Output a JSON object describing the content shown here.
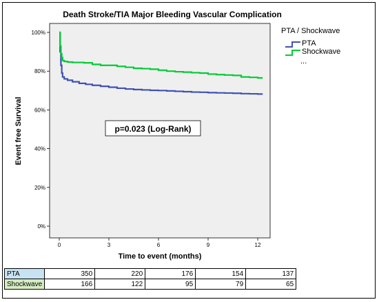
{
  "chart_data": {
    "type": "line",
    "subtype": "kaplan-meier",
    "title": "Death Stroke/TIA Major Bleeding Vascular Complication",
    "xlabel": "Time to event (months)",
    "ylabel": "Event free Survival",
    "xlim": [
      0,
      12.5
    ],
    "ylim": [
      0,
      100
    ],
    "x_ticks": [
      0,
      3,
      6,
      9,
      12
    ],
    "y_ticks": [
      "0%",
      "20%",
      "40%",
      "60%",
      "80%",
      "100%"
    ],
    "grid": false,
    "legend": {
      "title": "PTA / Shockwave",
      "placement": "right",
      "extra": "..."
    },
    "annotation": "p=0.023 (Log-Rank)",
    "series": [
      {
        "name": "PTA",
        "color": "#3f51b5",
        "x": [
          0,
          0.05,
          0.1,
          0.15,
          0.2,
          0.3,
          0.5,
          0.8,
          1.2,
          1.6,
          2.0,
          2.5,
          3.0,
          3.5,
          4.0,
          4.5,
          5.0,
          5.5,
          6.0,
          6.5,
          7.0,
          7.5,
          8.0,
          8.5,
          9.0,
          9.5,
          10.0,
          10.5,
          11.0,
          11.5,
          12.0,
          12.3
        ],
        "y": [
          100,
          90,
          83,
          79,
          77,
          76,
          75.3,
          74.5,
          73.7,
          73.2,
          72.7,
          72.2,
          71.7,
          71.2,
          70.8,
          70.5,
          70.3,
          70.1,
          70.0,
          69.8,
          69.6,
          69.4,
          69.2,
          69.1,
          68.9,
          68.8,
          68.7,
          68.6,
          68.4,
          68.3,
          68.2,
          68.2
        ]
      },
      {
        "name": "Shockwave",
        "color": "#00cc33",
        "x": [
          0,
          0.05,
          0.1,
          0.15,
          0.2,
          0.3,
          0.5,
          0.8,
          1.5,
          2.0,
          2.5,
          3.0,
          3.5,
          4.0,
          4.5,
          5.0,
          5.5,
          6.0,
          6.5,
          7.0,
          7.5,
          8.0,
          8.5,
          9.0,
          9.5,
          10.0,
          10.5,
          11.0,
          11.5,
          12.0,
          12.3
        ],
        "y": [
          100,
          93,
          89,
          87,
          85.5,
          85,
          84.7,
          84.5,
          84.3,
          83.5,
          83,
          83,
          82.5,
          82,
          81.5,
          81.3,
          81,
          80.5,
          80,
          79.7,
          79.5,
          79.2,
          79,
          78.5,
          78.2,
          78,
          77.8,
          77,
          76.8,
          76.5,
          76.5
        ]
      }
    ]
  },
  "risk_table": {
    "rows": [
      {
        "label": "PTA",
        "values": [
          "350",
          "220",
          "176",
          "154",
          "137"
        ]
      },
      {
        "label": "Shockwave",
        "values": [
          "166",
          "122",
          "95",
          "79",
          "65"
        ]
      }
    ]
  }
}
